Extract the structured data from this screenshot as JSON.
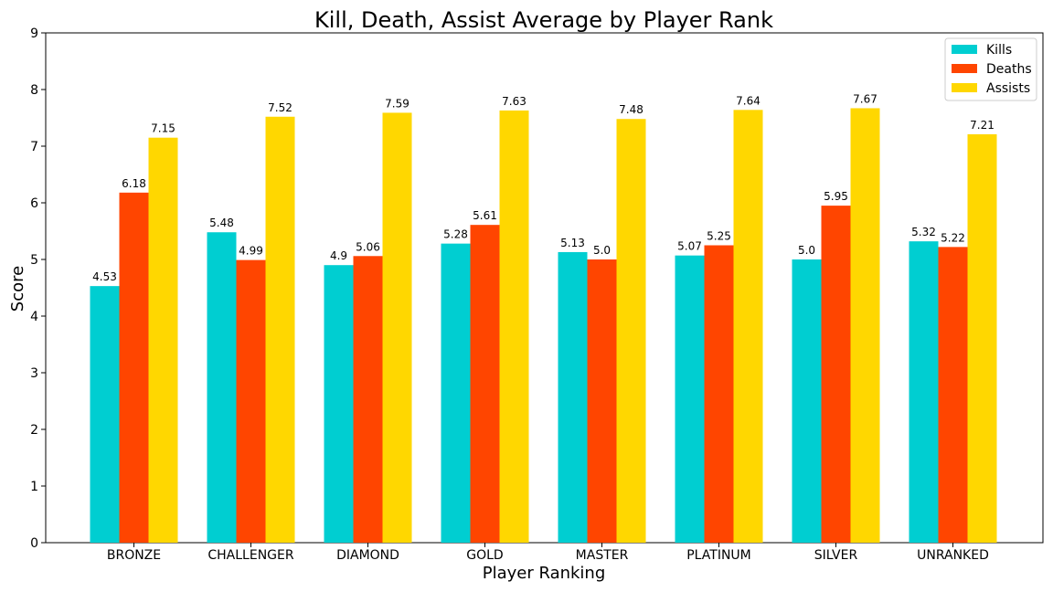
{
  "chart_data": {
    "type": "bar",
    "title": "Kill, Death, Assist Average by Player Rank",
    "xlabel": "Player Ranking",
    "ylabel": "Score",
    "ylim": [
      0,
      9
    ],
    "yticks": [
      0,
      1,
      2,
      3,
      4,
      5,
      6,
      7,
      8,
      9
    ],
    "categories": [
      "BRONZE",
      "CHALLENGER",
      "DIAMOND",
      "GOLD",
      "MASTER",
      "PLATINUM",
      "SILVER",
      "UNRANKED"
    ],
    "series": [
      {
        "name": "Kills",
        "color": "#00CED1",
        "values": [
          4.53,
          5.48,
          4.9,
          5.28,
          5.13,
          5.07,
          5.0,
          5.32
        ],
        "labels": [
          "4.53",
          "5.48",
          "4.9",
          "5.28",
          "5.13",
          "5.07",
          "5.0",
          "5.32"
        ]
      },
      {
        "name": "Deaths",
        "color": "#FF4500",
        "values": [
          6.18,
          4.99,
          5.06,
          5.61,
          5.0,
          5.25,
          5.95,
          5.22
        ],
        "labels": [
          "6.18",
          "4.99",
          "5.06",
          "5.61",
          "5.0",
          "5.25",
          "5.95",
          "5.22"
        ]
      },
      {
        "name": "Assists",
        "color": "#FFD700",
        "values": [
          7.15,
          7.52,
          7.59,
          7.63,
          7.48,
          7.64,
          7.67,
          7.21
        ],
        "labels": [
          "7.15",
          "7.52",
          "7.59",
          "7.63",
          "7.48",
          "7.64",
          "7.67",
          "7.21"
        ]
      }
    ],
    "grid": false,
    "legend_position": "top-right"
  }
}
